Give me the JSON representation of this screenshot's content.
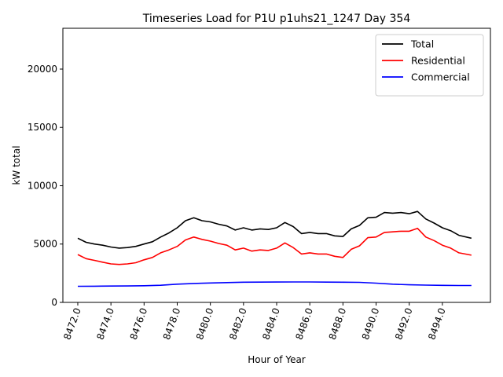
{
  "chart_data": {
    "type": "line",
    "title": "Timeseries Load for P1U p1uhs21_1247  Day 354",
    "xlabel": "Hour of Year",
    "ylabel": "kW total",
    "xlim": [
      8471.1,
      8496.9
    ],
    "ylim": [
      0,
      23500
    ],
    "xticks": [
      8472,
      8474,
      8476,
      8478,
      8480,
      8482,
      8484,
      8486,
      8488,
      8490,
      8492,
      8494
    ],
    "xtick_labels": [
      "8472.0",
      "8474.0",
      "8476.0",
      "8478.0",
      "8480.0",
      "8482.0",
      "8484.0",
      "8486.0",
      "8488.0",
      "8490.0",
      "8492.0",
      "8494.0"
    ],
    "yticks": [
      0,
      5000,
      10000,
      15000,
      20000
    ],
    "ytick_labels": [
      "0",
      "5000",
      "10000",
      "15000",
      "20000"
    ],
    "legend_position": "top-right",
    "series": [
      {
        "name": "Total",
        "color": "#000000",
        "x": [
          8472.0,
          8472.5,
          8473.0,
          8473.5,
          8474.0,
          8474.5,
          8475.0,
          8475.5,
          8476.0,
          8476.5,
          8477.0,
          8477.5,
          8478.0,
          8478.5,
          8479.0,
          8479.5,
          8480.0,
          8480.5,
          8481.0,
          8481.5,
          8482.0,
          8482.5,
          8483.0,
          8483.5,
          8484.0,
          8484.5,
          8485.0,
          8485.5,
          8486.0,
          8486.5,
          8487.0,
          8487.5,
          8488.0,
          8488.5,
          8489.0,
          8489.5,
          8490.0,
          8490.5,
          8491.0,
          8491.5,
          8492.0,
          8492.5,
          8493.0,
          8493.5,
          8494.0,
          8494.5,
          8495.0,
          8495.75
        ],
        "values": [
          5500,
          5150,
          5000,
          4900,
          4750,
          4650,
          4700,
          4800,
          5000,
          5200,
          5600,
          5950,
          6400,
          7000,
          7250,
          7000,
          6900,
          6700,
          6550,
          6200,
          6400,
          6200,
          6300,
          6250,
          6400,
          6850,
          6500,
          5900,
          6000,
          5900,
          5900,
          5700,
          5650,
          6300,
          6600,
          7250,
          7300,
          7700,
          7650,
          7700,
          7600,
          7800,
          7150,
          6800,
          6400,
          6150,
          5750,
          5500
        ]
      },
      {
        "name": "Residential",
        "color": "#ff0000",
        "x": [
          8472.0,
          8472.5,
          8473.0,
          8473.5,
          8474.0,
          8474.5,
          8475.0,
          8475.5,
          8476.0,
          8476.5,
          8477.0,
          8477.5,
          8478.0,
          8478.5,
          8479.0,
          8479.5,
          8480.0,
          8480.5,
          8481.0,
          8481.5,
          8482.0,
          8482.5,
          8483.0,
          8483.5,
          8484.0,
          8484.5,
          8485.0,
          8485.5,
          8486.0,
          8486.5,
          8487.0,
          8487.5,
          8488.0,
          8488.5,
          8489.0,
          8489.5,
          8490.0,
          8490.5,
          8491.0,
          8491.5,
          8492.0,
          8492.5,
          8493.0,
          8493.5,
          8494.0,
          8494.5,
          8495.0,
          8495.75
        ],
        "values": [
          4100,
          3750,
          3600,
          3450,
          3300,
          3250,
          3300,
          3400,
          3650,
          3850,
          4250,
          4500,
          4800,
          5350,
          5600,
          5400,
          5250,
          5050,
          4900,
          4500,
          4650,
          4400,
          4500,
          4450,
          4650,
          5100,
          4700,
          4150,
          4250,
          4150,
          4150,
          3950,
          3850,
          4550,
          4850,
          5550,
          5600,
          6000,
          6050,
          6100,
          6100,
          6350,
          5600,
          5300,
          4900,
          4650,
          4250,
          4050
        ]
      },
      {
        "name": "Commercial",
        "color": "#0000ff",
        "x": [
          8472.0,
          8473.0,
          8474.0,
          8475.0,
          8476.0,
          8477.0,
          8478.0,
          8479.0,
          8480.0,
          8481.0,
          8482.0,
          8483.0,
          8484.0,
          8485.0,
          8486.0,
          8487.0,
          8488.0,
          8489.0,
          8490.0,
          8491.0,
          8492.0,
          8493.0,
          8494.0,
          8495.0,
          8495.75
        ],
        "values": [
          1380,
          1390,
          1400,
          1410,
          1430,
          1470,
          1560,
          1620,
          1660,
          1700,
          1730,
          1740,
          1745,
          1748,
          1750,
          1740,
          1730,
          1720,
          1650,
          1560,
          1510,
          1480,
          1460,
          1450,
          1450
        ]
      }
    ]
  }
}
